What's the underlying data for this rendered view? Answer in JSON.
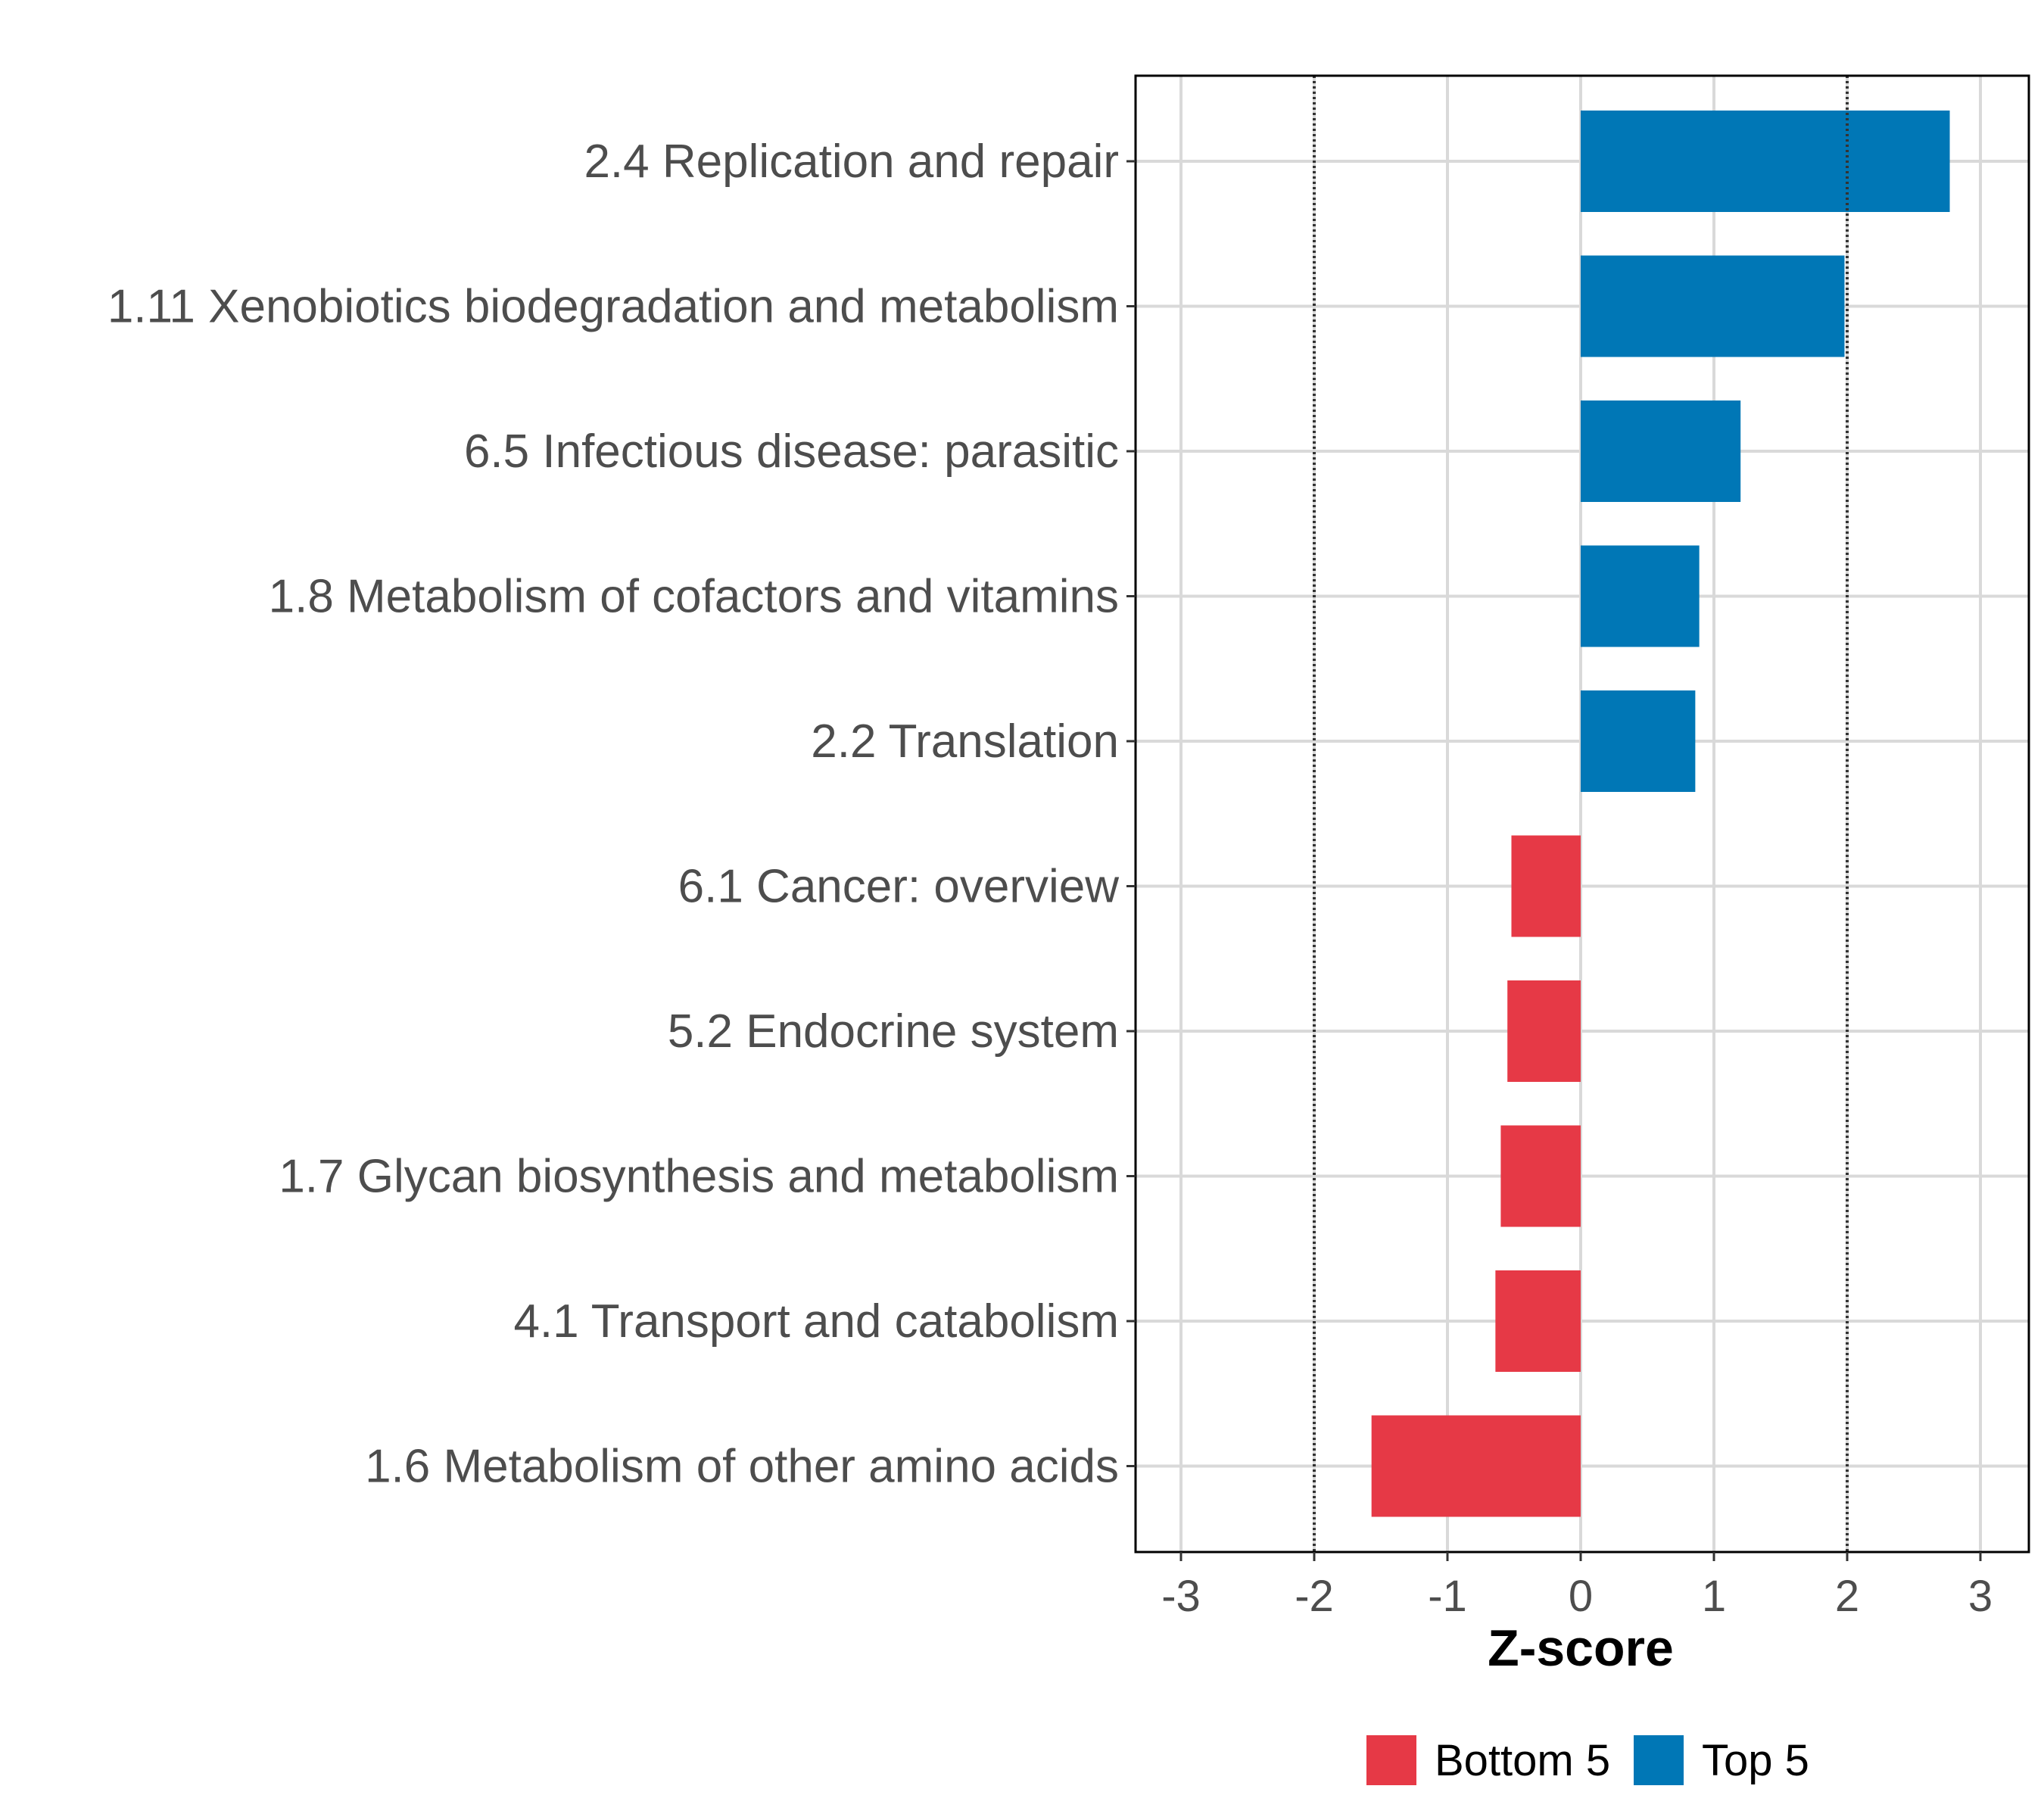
{
  "chart_data": {
    "type": "bar",
    "orientation": "horizontal",
    "categories": [
      "2.4 Replication and repair",
      "1.11 Xenobiotics biodegradation and metabolism",
      "6.5 Infectious disease: parasitic",
      "1.8 Metabolism of cofactors and vitamins",
      "2.2 Translation",
      "6.1 Cancer: overview",
      "5.2 Endocrine system",
      "1.7 Glycan biosynthesis and metabolism",
      "4.1 Transport and catabolism",
      "1.6 Metabolism of other amino acids"
    ],
    "values": [
      2.77,
      1.98,
      1.2,
      0.89,
      0.86,
      -0.52,
      -0.55,
      -0.6,
      -0.64,
      -1.57
    ],
    "groups": [
      "Top 5",
      "Top 5",
      "Top 5",
      "Top 5",
      "Top 5",
      "Bottom 5",
      "Bottom 5",
      "Bottom 5",
      "Bottom 5",
      "Bottom 5"
    ],
    "xlabel": "Z-score",
    "ylabel": "",
    "xlim": [
      -3.35,
      3.35
    ],
    "xticks": [
      -3,
      -2,
      -1,
      0,
      1,
      2,
      3
    ],
    "xtick_labels": [
      "-3",
      "-2",
      "-1",
      "0",
      "1",
      "2",
      "3"
    ],
    "reference_lines": [
      -2,
      2
    ],
    "grid": true,
    "legend": {
      "placement": "bottom",
      "entries": [
        {
          "label": "Bottom 5",
          "color": "#e63946"
        },
        {
          "label": "Top 5",
          "color": "#0077b6"
        }
      ]
    }
  }
}
